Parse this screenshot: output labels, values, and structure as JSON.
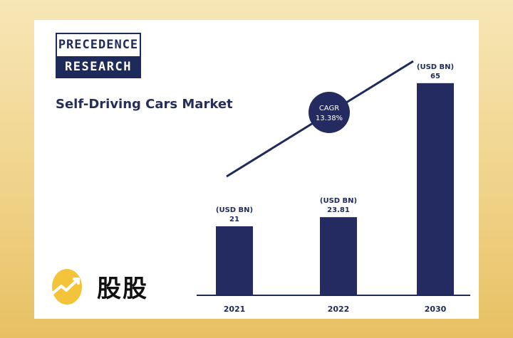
{
  "logo": {
    "line1": "PRECEDENCE",
    "line2": "RESEARCH"
  },
  "watermark": {
    "text": "股股"
  },
  "colors": {
    "bar": "#242b61",
    "accent": "#1e2a5a",
    "egg": "#f3c33a"
  },
  "chart_data": {
    "type": "bar",
    "title": "Self-Driving Cars Market",
    "categories": [
      "2021",
      "2022",
      "2030"
    ],
    "values": [
      21,
      23.81,
      65
    ],
    "value_labels": [
      "21",
      "23.81",
      "65"
    ],
    "unit_label": "(USD BN)",
    "xlabel": "",
    "ylabel": "",
    "ylim": [
      0,
      70
    ],
    "grid": false,
    "trend_line": true,
    "annotation": {
      "line1": "CAGR",
      "line2": "13.38%"
    }
  }
}
